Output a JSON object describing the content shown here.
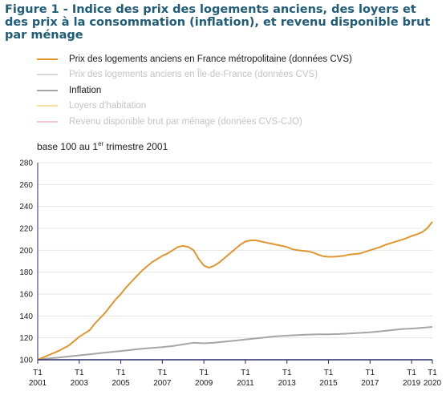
{
  "title": "Figure 1 - Indice des prix des logements anciens, des loyers et des prix à la consommation (inflation), et revenu disponible brut par ménage",
  "base_note": {
    "text": "base 100 au 1",
    "sup": "er",
    "rest": " trimestre 2001"
  },
  "legend": [
    {
      "label": "Prix des logements anciens en France métropolitaine (données CVS)",
      "color": "#e0962f",
      "active": true
    },
    {
      "label": "Prix des logements anciens en Île-de-France (données CVS)",
      "color": "#d9d9d9",
      "active": false
    },
    {
      "label": "Inflation",
      "color": "#a6a6a6",
      "active": true
    },
    {
      "label": "Loyers d'habitation",
      "color": "#f5e3a6",
      "active": false
    },
    {
      "label": "Revenu disponible brut par ménage (données CVS-CJO)",
      "color": "#f2c7cf",
      "active": false
    }
  ],
  "chart_data": {
    "type": "line",
    "ylim": [
      100,
      280
    ],
    "yticks": [
      100,
      120,
      140,
      160,
      180,
      200,
      220,
      240,
      260,
      280
    ],
    "x_tick_labels": [
      {
        "q": "T1",
        "year": "2001"
      },
      {
        "q": "T1",
        "year": "2003"
      },
      {
        "q": "T1",
        "year": "2005"
      },
      {
        "q": "T1",
        "year": "2007"
      },
      {
        "q": "T1",
        "year": "2009"
      },
      {
        "q": "T1",
        "year": "2011"
      },
      {
        "q": "T1",
        "year": "2013"
      },
      {
        "q": "T1",
        "year": "2015"
      },
      {
        "q": "T1",
        "year": "2017"
      },
      {
        "q": "T1",
        "year": "2019"
      },
      {
        "q": "T1",
        "year": "2020"
      }
    ],
    "x_tick_years": [
      2001,
      2003,
      2005,
      2007,
      2009,
      2011,
      2013,
      2015,
      2017,
      2019,
      2020
    ],
    "xlim": [
      2001.0,
      2020.0
    ],
    "series": [
      {
        "name": "Prix des logements anciens en France métropolitaine (données CVS)",
        "color": "#e0962f",
        "x": [
          2001.0,
          2001.25,
          2001.5,
          2001.75,
          2002.0,
          2002.25,
          2002.5,
          2002.75,
          2003.0,
          2003.25,
          2003.5,
          2003.75,
          2004.0,
          2004.25,
          2004.5,
          2004.75,
          2005.0,
          2005.25,
          2005.5,
          2005.75,
          2006.0,
          2006.25,
          2006.5,
          2006.75,
          2007.0,
          2007.25,
          2007.5,
          2007.75,
          2008.0,
          2008.25,
          2008.5,
          2008.75,
          2009.0,
          2009.25,
          2009.5,
          2009.75,
          2010.0,
          2010.25,
          2010.5,
          2010.75,
          2011.0,
          2011.25,
          2011.5,
          2011.75,
          2012.0,
          2012.25,
          2012.5,
          2012.75,
          2013.0,
          2013.25,
          2013.5,
          2013.75,
          2014.0,
          2014.25,
          2014.5,
          2014.75,
          2015.0,
          2015.25,
          2015.5,
          2015.75,
          2016.0,
          2016.25,
          2016.5,
          2016.75,
          2017.0,
          2017.25,
          2017.5,
          2017.75,
          2018.0,
          2018.25,
          2018.5,
          2018.75,
          2019.0,
          2019.25,
          2019.5,
          2019.75,
          2020.0
        ],
        "y": [
          100,
          102,
          104,
          106,
          108,
          110.5,
          113,
          117,
          121,
          124,
          127,
          133,
          138,
          143,
          149,
          155,
          160,
          166,
          171,
          176,
          181,
          185,
          189,
          192,
          195,
          197,
          200,
          203,
          204,
          203,
          200,
          192,
          186,
          184,
          186,
          189,
          193,
          197,
          201,
          205,
          208,
          209,
          209,
          208,
          207,
          206,
          205,
          204,
          203,
          201,
          200,
          199.5,
          199,
          198,
          196,
          194.5,
          194,
          194,
          194.5,
          195,
          196,
          196.5,
          197,
          198.5,
          200,
          201.5,
          203,
          205,
          206.5,
          208,
          209.5,
          211,
          213,
          214.5,
          216.5,
          220,
          226
        ]
      },
      {
        "name": "Inflation",
        "color": "#a6a6a6",
        "x": [
          2001.0,
          2001.5,
          2002.0,
          2002.5,
          2003.0,
          2003.5,
          2004.0,
          2004.5,
          2005.0,
          2005.5,
          2006.0,
          2006.5,
          2007.0,
          2007.5,
          2008.0,
          2008.5,
          2009.0,
          2009.5,
          2010.0,
          2010.5,
          2011.0,
          2011.5,
          2012.0,
          2012.5,
          2013.0,
          2013.5,
          2014.0,
          2014.5,
          2015.0,
          2015.5,
          2016.0,
          2016.5,
          2017.0,
          2017.5,
          2018.0,
          2018.5,
          2019.0,
          2019.5,
          2020.0
        ],
        "y": [
          100,
          101.2,
          102,
          103,
          104,
          105,
          106,
          107,
          108,
          109,
          110,
          110.8,
          111.5,
          112.5,
          114,
          115.5,
          115,
          115.5,
          116.5,
          117.5,
          118.5,
          119.5,
          120.5,
          121.5,
          122,
          122.5,
          123,
          123.2,
          123.2,
          123.5,
          124,
          124.5,
          125,
          126,
          127,
          128,
          128.5,
          129.2,
          130
        ]
      }
    ]
  }
}
